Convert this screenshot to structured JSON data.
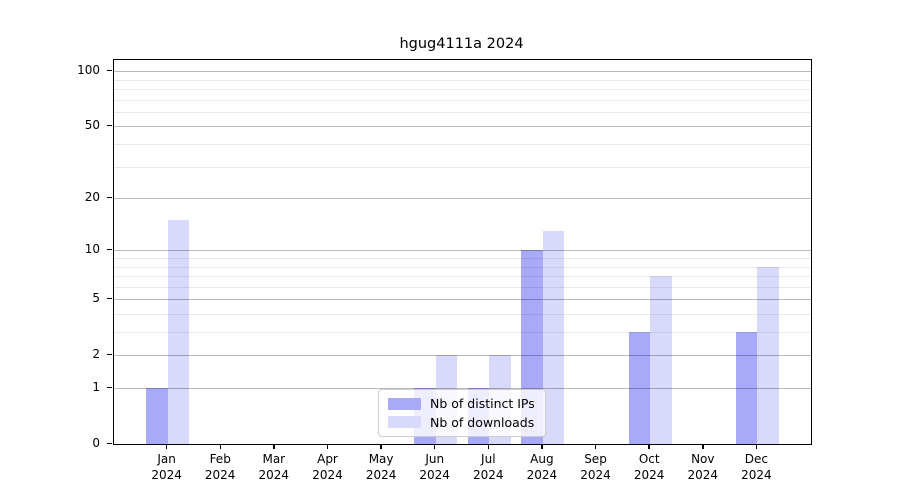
{
  "chart_data": {
    "type": "bar",
    "title": "hgug4111a 2024",
    "x_categories": [
      "Jan",
      "Feb",
      "Mar",
      "Apr",
      "May",
      "Jun",
      "Jul",
      "Aug",
      "Sep",
      "Oct",
      "Nov",
      "Dec"
    ],
    "x_year": "2024",
    "series": [
      {
        "name": "Nb of distinct IPs",
        "color": "#a8a9f8",
        "values": [
          1,
          0,
          0,
          0,
          0,
          1,
          1,
          10,
          0,
          3,
          0,
          3
        ]
      },
      {
        "name": "Nb of downloads",
        "color": "#d9dafb",
        "values": [
          15,
          0,
          0,
          0,
          0,
          2,
          2,
          13,
          0,
          7,
          0,
          8
        ]
      }
    ],
    "y_scale": "log1p",
    "y_axis": {
      "major_ticks": [
        0,
        1,
        2,
        5,
        10,
        20,
        50,
        100
      ],
      "minor_ticks": [
        3,
        4,
        6,
        7,
        8,
        9,
        30,
        40,
        60,
        70,
        80,
        90
      ],
      "top_value": 115
    },
    "grid": true,
    "legend_position": "lower center",
    "colors": {
      "axis": "#000000",
      "major_grid": "#bdbdbd",
      "minor_grid": "#ebebeb",
      "background": "#ffffff"
    }
  }
}
